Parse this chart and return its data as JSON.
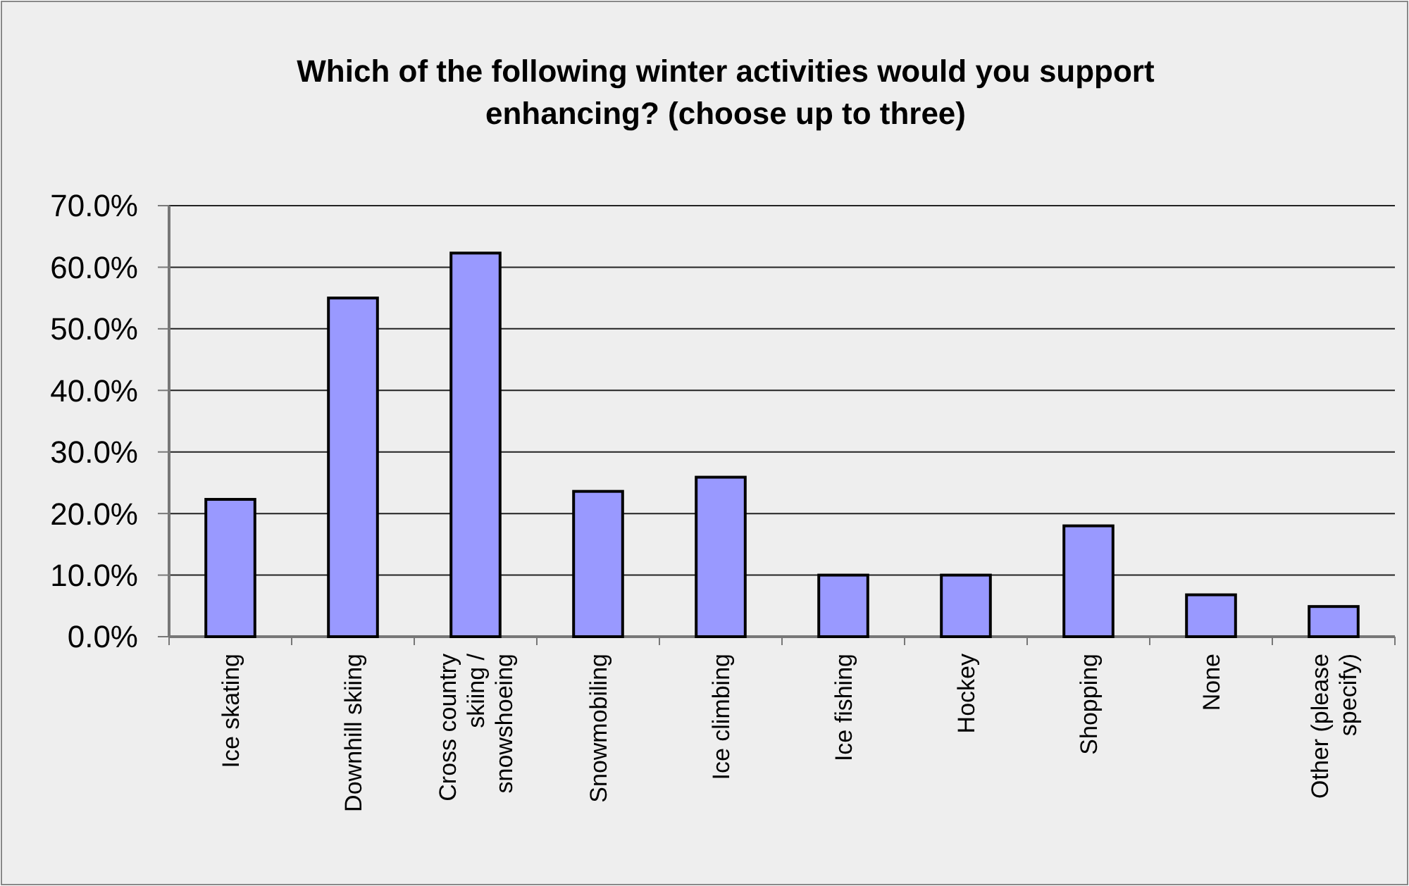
{
  "chart_data": {
    "type": "bar",
    "title": "Which of the following winter activities would you support enhancing? (choose up to three)",
    "categories": [
      "Ice skating",
      "Downhill skiing",
      "Cross country skiing / snowshoeing",
      "Snowmobiling",
      "Ice climbing",
      "Ice fishing",
      "Hockey",
      "Shopping",
      "None",
      "Other (please specify)"
    ],
    "values": [
      22.3,
      55.0,
      62.3,
      23.6,
      25.9,
      10.0,
      10.0,
      18.0,
      6.8,
      4.9
    ],
    "color": "#9999ff",
    "ylim": [
      0,
      70
    ],
    "yticks": [
      {
        "value": 0,
        "label": "0.0%"
      },
      {
        "value": 10,
        "label": "10.0%"
      },
      {
        "value": 20,
        "label": "20.0%"
      },
      {
        "value": 30,
        "label": "30.0%"
      },
      {
        "value": 40,
        "label": "40.0%"
      },
      {
        "value": 50,
        "label": "50.0%"
      },
      {
        "value": 60,
        "label": "60.0%"
      },
      {
        "value": 70,
        "label": "70.0%"
      }
    ],
    "grid": "y"
  }
}
